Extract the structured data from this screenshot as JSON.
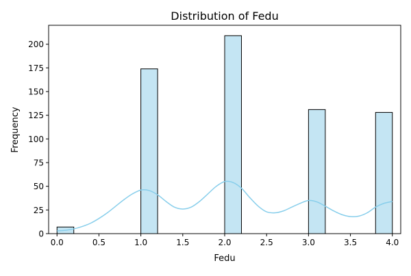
{
  "chart_data": {
    "type": "bar",
    "title": "Distribution of Fedu",
    "xlabel": "Fedu",
    "ylabel": "Frequency",
    "xlim": [
      -0.1,
      4.1
    ],
    "ylim": [
      0,
      220
    ],
    "xticks": [
      0.0,
      0.5,
      1.0,
      1.5,
      2.0,
      2.5,
      3.0,
      3.5,
      4.0
    ],
    "xtick_labels": [
      "0.0",
      "0.5",
      "1.0",
      "1.5",
      "2.0",
      "2.5",
      "3.0",
      "3.5",
      "4.0"
    ],
    "yticks": [
      0,
      25,
      50,
      75,
      100,
      125,
      150,
      175,
      200
    ],
    "ytick_labels": [
      "0",
      "25",
      "50",
      "75",
      "100",
      "125",
      "150",
      "175",
      "200"
    ],
    "bin_width": 0.2,
    "bins": [
      {
        "start": 0.0,
        "end": 0.2,
        "count": 7
      },
      {
        "start": 1.0,
        "end": 1.2,
        "count": 174
      },
      {
        "start": 2.0,
        "end": 2.2,
        "count": 209
      },
      {
        "start": 3.0,
        "end": 3.2,
        "count": 131
      },
      {
        "start": 3.8,
        "end": 4.0,
        "count": 128
      }
    ],
    "kde": {
      "x": [
        0.0,
        0.1,
        0.2,
        0.3,
        0.4,
        0.5,
        0.6,
        0.7,
        0.8,
        0.9,
        1.0,
        1.1,
        1.2,
        1.3,
        1.4,
        1.5,
        1.6,
        1.7,
        1.8,
        1.9,
        2.0,
        2.1,
        2.2,
        2.3,
        2.4,
        2.5,
        2.6,
        2.7,
        2.8,
        2.9,
        3.0,
        3.1,
        3.2,
        3.3,
        3.4,
        3.5,
        3.6,
        3.7,
        3.8,
        3.9,
        4.0
      ],
      "y": [
        3,
        3.5,
        5,
        7.5,
        11,
        16,
        22,
        29,
        36,
        42,
        46,
        45.5,
        41,
        34,
        28,
        26,
        28,
        34,
        42,
        50,
        55,
        54,
        48,
        38,
        29,
        23,
        22,
        24,
        28,
        32,
        35,
        33.5,
        29,
        24,
        20,
        18,
        18.5,
        22,
        28,
        32,
        34
      ]
    },
    "grid": false,
    "colors": {
      "bar_fill": "#c4e5f3",
      "bar_edge": "#000000",
      "kde_line": "#87ceeb",
      "axis": "#000000"
    }
  }
}
